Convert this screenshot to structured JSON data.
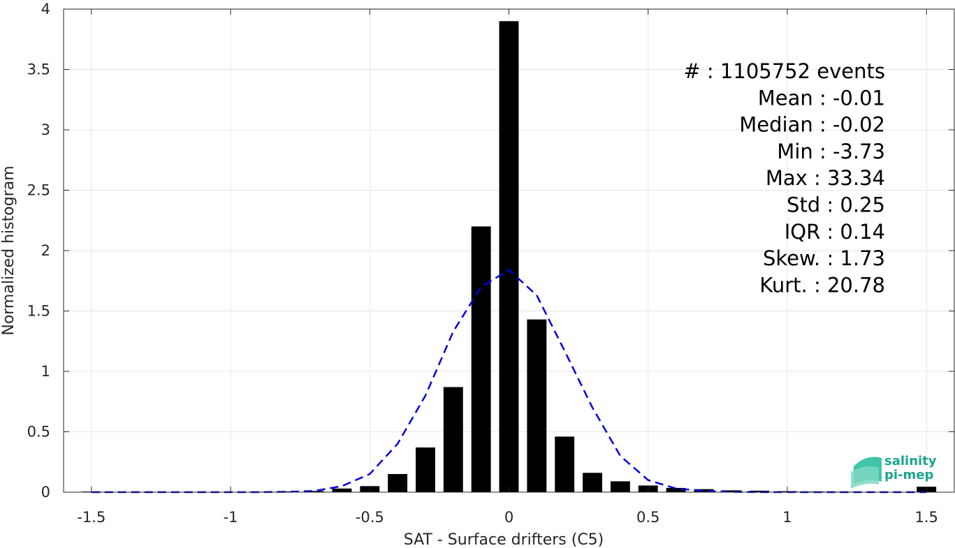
{
  "chart_data": {
    "type": "bar",
    "xlabel": "SAT - Surface drifters (C5)",
    "ylabel": "Normalized histogram",
    "xlim": [
      -1.6,
      1.6
    ],
    "ylim": [
      0,
      4
    ],
    "grid": true,
    "x_ticks": [
      "-1.5",
      "-1",
      "-0.5",
      "0",
      "0.5",
      "1",
      "1.5"
    ],
    "x_tick_values": [
      -1.5,
      -1,
      -0.5,
      0,
      0.5,
      1,
      1.5
    ],
    "y_ticks": [
      "0",
      "0.5",
      "1",
      "1.5",
      "2",
      "2.5",
      "3",
      "3.5",
      "4"
    ],
    "y_tick_values": [
      0,
      0.5,
      1,
      1.5,
      2,
      2.5,
      3,
      3.5,
      4
    ],
    "bars": {
      "color": "#000000",
      "width": 0.07,
      "x": [
        -1.5,
        -1.4,
        -1.3,
        -1.2,
        -1.1,
        -1.0,
        -0.9,
        -0.8,
        -0.7,
        -0.6,
        -0.5,
        -0.4,
        -0.3,
        -0.2,
        -0.1,
        0.0,
        0.1,
        0.2,
        0.3,
        0.4,
        0.5,
        0.6,
        0.7,
        0.8,
        0.9,
        1.0,
        1.1,
        1.2,
        1.3,
        1.4,
        1.5
      ],
      "values": [
        0.005,
        0.002,
        0.002,
        0.002,
        0.002,
        0.003,
        0.004,
        0.006,
        0.01,
        0.03,
        0.05,
        0.15,
        0.37,
        0.87,
        2.2,
        3.9,
        1.43,
        0.46,
        0.16,
        0.09,
        0.055,
        0.035,
        0.025,
        0.015,
        0.012,
        0.008,
        0.005,
        0.004,
        0.003,
        0.002,
        0.045
      ]
    },
    "fit_curve": {
      "style": "dashed",
      "color": "#0000dd",
      "x": [
        -1.5,
        -1.4,
        -1.3,
        -1.2,
        -1.1,
        -1.0,
        -0.9,
        -0.8,
        -0.7,
        -0.6,
        -0.5,
        -0.4,
        -0.3,
        -0.2,
        -0.1,
        0.0,
        0.1,
        0.2,
        0.3,
        0.4,
        0.5,
        0.6,
        0.7,
        0.8,
        0.9,
        1.0,
        1.1,
        1.2,
        1.3,
        1.4,
        1.5
      ],
      "values": [
        0.0,
        0.0,
        0.0,
        0.0,
        0.0,
        0.0,
        0.0,
        0.003,
        0.01,
        0.05,
        0.15,
        0.4,
        0.8,
        1.33,
        1.7,
        1.84,
        1.63,
        1.17,
        0.7,
        0.3,
        0.1,
        0.03,
        0.01,
        0.003,
        0.0,
        0.0,
        0.0,
        0.0,
        0.0,
        0.0,
        0.0
      ]
    },
    "stats": [
      "#  : 1105752 events",
      "Mean : -0.01",
      "Median : -0.02",
      "Min : -3.73",
      "Max : 33.34",
      "Std : 0.25",
      "IQR : 0.14",
      "Skew. : 1.73",
      "Kurt. : 20.78"
    ]
  },
  "logo": {
    "line1": "salinity",
    "line2": "pi-mep",
    "color": "#1aa58c"
  }
}
